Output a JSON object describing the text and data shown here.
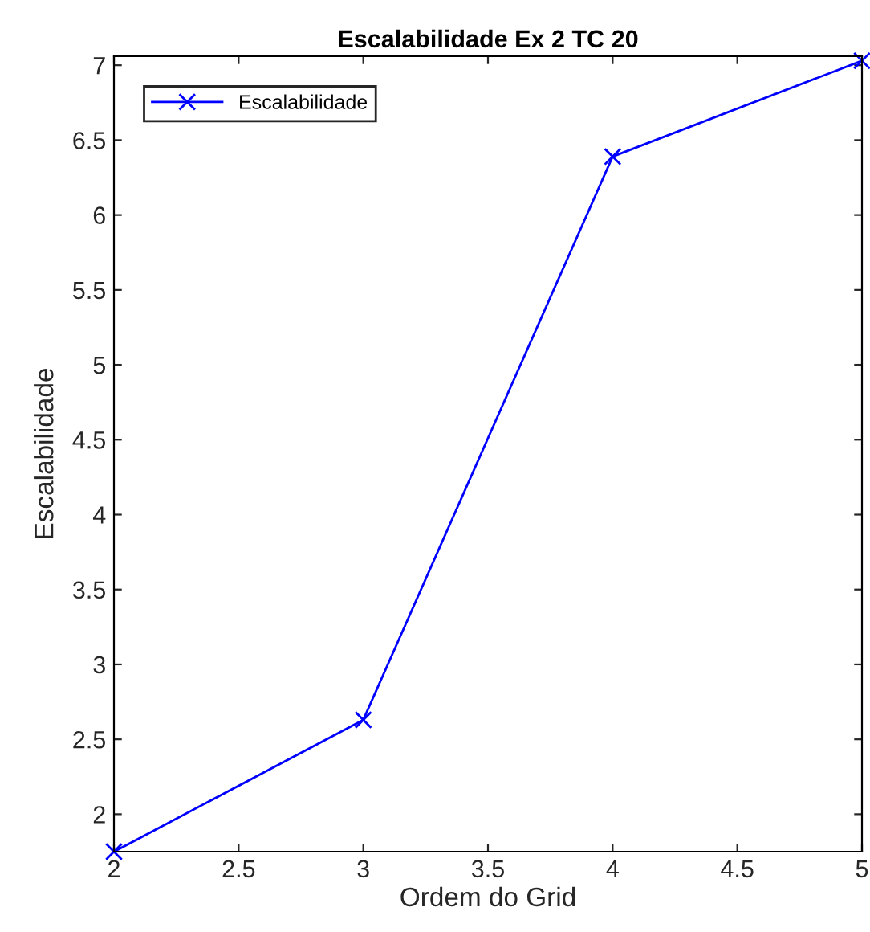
{
  "chart_data": {
    "type": "line",
    "title": "Escalabilidade Ex 2 TC 20",
    "xlabel": "Ordem do Grid",
    "ylabel": "Escalabilidade",
    "x": [
      2,
      3,
      4,
      5
    ],
    "series": [
      {
        "name": "Escalabilidade",
        "color": "#0000ff",
        "values": [
          1.75,
          2.63,
          6.39,
          7.03
        ]
      }
    ],
    "xlim": [
      2,
      5
    ],
    "xticks": [
      2,
      2.5,
      3,
      3.5,
      4,
      4.5,
      5
    ],
    "ylim": [
      1.75,
      7.06
    ],
    "yticks": [
      2,
      2.5,
      3,
      3.5,
      4,
      4.5,
      5,
      5.5,
      6,
      6.5,
      7
    ],
    "marker": "cross",
    "line_style": "solid",
    "legend": "top left",
    "grid": false
  }
}
